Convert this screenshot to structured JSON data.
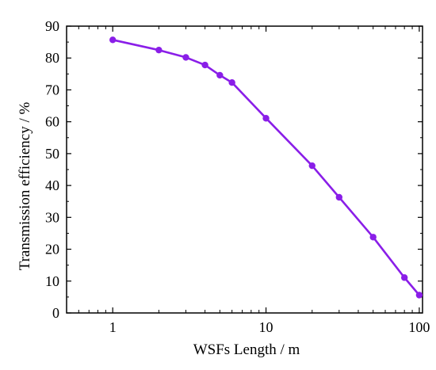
{
  "chart_data": {
    "type": "line",
    "xscale": "log",
    "xlabel": "WSFs Length / m",
    "ylabel": "Transmission efficiency / %",
    "xlim": [
      0.5,
      105
    ],
    "ylim": [
      0,
      90
    ],
    "xticks": [
      1,
      10,
      100
    ],
    "xtick_labels": [
      "1",
      "10",
      "100"
    ],
    "yticks": [
      0,
      10,
      20,
      30,
      40,
      50,
      60,
      70,
      80,
      90
    ],
    "ytick_labels": [
      "0",
      "10",
      "20",
      "30",
      "40",
      "50",
      "60",
      "70",
      "80",
      "90"
    ],
    "grid": false,
    "series": [
      {
        "color": "#8a1ee8",
        "x": [
          1,
          2,
          3,
          4,
          5,
          6,
          10,
          20,
          30,
          50,
          80,
          100
        ],
        "y": [
          85.7,
          82.5,
          80.2,
          77.8,
          74.6,
          72.3,
          61.1,
          46.2,
          36.3,
          23.8,
          11.1,
          5.6
        ]
      }
    ]
  }
}
